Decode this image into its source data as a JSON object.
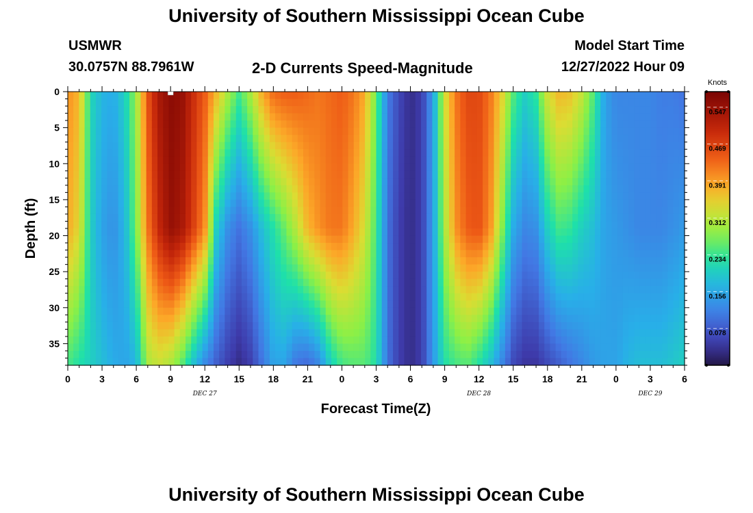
{
  "header": {
    "title": "University of Southern Mississippi Ocean Cube",
    "station": "USMWR",
    "coords": "30.0757N  88.7961W",
    "subtitle": "2-D Currents Speed-Magnitude",
    "model_start_label": "Model Start Time",
    "model_start_value": "12/27/2022 Hour 09",
    "footer_title": "University of Southern Mississippi Ocean Cube"
  },
  "chart_data": {
    "type": "heatmap",
    "xlabel": "Forecast Time(Z)",
    "ylabel": "Depth (ft)",
    "x_range": [
      0,
      54
    ],
    "y_range": [
      0,
      38
    ],
    "x_ticks": [
      0,
      3,
      6,
      9,
      12,
      15,
      18,
      21,
      24,
      27,
      30,
      33,
      36,
      39,
      42,
      45,
      48,
      51,
      54
    ],
    "x_tick_labels": [
      "0",
      "3",
      "6",
      "9",
      "12",
      "15",
      "18",
      "21",
      "0",
      "3",
      "6",
      "9",
      "12",
      "15",
      "18",
      "21",
      "0",
      "3",
      "6"
    ],
    "y_ticks": [
      0,
      5,
      10,
      15,
      20,
      25,
      30,
      35
    ],
    "y_tick_labels": [
      "0",
      "5",
      "10",
      "15",
      "20",
      "25",
      "30",
      "35"
    ],
    "date_labels": [
      {
        "x": 12,
        "text": "DEC 27"
      },
      {
        "x": 36,
        "text": "DEC 28"
      },
      {
        "x": 51,
        "text": "DEC 29"
      }
    ],
    "colorbar": {
      "unit": "Knots",
      "min": 0.0,
      "max": 0.58,
      "ticks": [
        0.547,
        0.469,
        0.391,
        0.312,
        0.234,
        0.156,
        0.078
      ],
      "tick_labels": [
        "0.547",
        "0.469",
        "0.391",
        "0.312",
        "0.234",
        "0.156",
        "0.078"
      ]
    },
    "columns": [
      {
        "x": 0,
        "top": 0.4,
        "mid": 0.38,
        "bottom": 0.24
      },
      {
        "x": 1,
        "top": 0.37,
        "mid": 0.34,
        "bottom": 0.22
      },
      {
        "x": 2,
        "top": 0.21,
        "mid": 0.2,
        "bottom": 0.2
      },
      {
        "x": 3,
        "top": 0.17,
        "mid": 0.15,
        "bottom": 0.18
      },
      {
        "x": 4,
        "top": 0.16,
        "mid": 0.13,
        "bottom": 0.16
      },
      {
        "x": 5,
        "top": 0.2,
        "mid": 0.17,
        "bottom": 0.15
      },
      {
        "x": 6,
        "top": 0.29,
        "mid": 0.27,
        "bottom": 0.17
      },
      {
        "x": 7,
        "top": 0.45,
        "mid": 0.42,
        "bottom": 0.3
      },
      {
        "x": 8,
        "top": 0.53,
        "mid": 0.5,
        "bottom": 0.32
      },
      {
        "x": 9,
        "top": 0.56,
        "mid": 0.55,
        "bottom": 0.3
      },
      {
        "x": 10,
        "top": 0.55,
        "mid": 0.53,
        "bottom": 0.25
      },
      {
        "x": 11,
        "top": 0.49,
        "mid": 0.47,
        "bottom": 0.18
      },
      {
        "x": 12,
        "top": 0.44,
        "mid": 0.4,
        "bottom": 0.12
      },
      {
        "x": 13,
        "top": 0.37,
        "mid": 0.2,
        "bottom": 0.08
      },
      {
        "x": 14,
        "top": 0.3,
        "mid": 0.13,
        "bottom": 0.05
      },
      {
        "x": 15,
        "top": 0.24,
        "mid": 0.1,
        "bottom": 0.03
      },
      {
        "x": 16,
        "top": 0.3,
        "mid": 0.13,
        "bottom": 0.05
      },
      {
        "x": 17,
        "top": 0.38,
        "mid": 0.18,
        "bottom": 0.1
      },
      {
        "x": 18,
        "top": 0.43,
        "mid": 0.22,
        "bottom": 0.15
      },
      {
        "x": 19,
        "top": 0.44,
        "mid": 0.26,
        "bottom": 0.15
      },
      {
        "x": 20,
        "top": 0.44,
        "mid": 0.31,
        "bottom": 0.1
      },
      {
        "x": 21,
        "top": 0.43,
        "mid": 0.37,
        "bottom": 0.09
      },
      {
        "x": 22,
        "top": 0.42,
        "mid": 0.4,
        "bottom": 0.12
      },
      {
        "x": 23,
        "top": 0.43,
        "mid": 0.42,
        "bottom": 0.2
      },
      {
        "x": 24,
        "top": 0.44,
        "mid": 0.42,
        "bottom": 0.24
      },
      {
        "x": 25,
        "top": 0.42,
        "mid": 0.38,
        "bottom": 0.25
      },
      {
        "x": 26,
        "top": 0.38,
        "mid": 0.33,
        "bottom": 0.25
      },
      {
        "x": 27,
        "top": 0.26,
        "mid": 0.24,
        "bottom": 0.22
      },
      {
        "x": 28,
        "top": 0.11,
        "mid": 0.1,
        "bottom": 0.1
      },
      {
        "x": 29,
        "top": 0.06,
        "mid": 0.05,
        "bottom": 0.05
      },
      {
        "x": 30,
        "top": 0.03,
        "mid": 0.03,
        "bottom": 0.03
      },
      {
        "x": 31,
        "top": 0.05,
        "mid": 0.05,
        "bottom": 0.05
      },
      {
        "x": 32,
        "top": 0.15,
        "mid": 0.15,
        "bottom": 0.14
      },
      {
        "x": 33,
        "top": 0.33,
        "mid": 0.3,
        "bottom": 0.22
      },
      {
        "x": 34,
        "top": 0.42,
        "mid": 0.4,
        "bottom": 0.24
      },
      {
        "x": 35,
        "top": 0.46,
        "mid": 0.44,
        "bottom": 0.25
      },
      {
        "x": 36,
        "top": 0.46,
        "mid": 0.45,
        "bottom": 0.22
      },
      {
        "x": 37,
        "top": 0.42,
        "mid": 0.4,
        "bottom": 0.18
      },
      {
        "x": 38,
        "top": 0.35,
        "mid": 0.28,
        "bottom": 0.12
      },
      {
        "x": 39,
        "top": 0.25,
        "mid": 0.16,
        "bottom": 0.06
      },
      {
        "x": 40,
        "top": 0.2,
        "mid": 0.12,
        "bottom": 0.04
      },
      {
        "x": 41,
        "top": 0.23,
        "mid": 0.13,
        "bottom": 0.04
      },
      {
        "x": 42,
        "top": 0.33,
        "mid": 0.2,
        "bottom": 0.06
      },
      {
        "x": 43,
        "top": 0.37,
        "mid": 0.24,
        "bottom": 0.08
      },
      {
        "x": 44,
        "top": 0.36,
        "mid": 0.23,
        "bottom": 0.1
      },
      {
        "x": 45,
        "top": 0.32,
        "mid": 0.2,
        "bottom": 0.12
      },
      {
        "x": 46,
        "top": 0.25,
        "mid": 0.18,
        "bottom": 0.14
      },
      {
        "x": 47,
        "top": 0.15,
        "mid": 0.15,
        "bottom": 0.15
      },
      {
        "x": 48,
        "top": 0.12,
        "mid": 0.14,
        "bottom": 0.15
      },
      {
        "x": 49,
        "top": 0.12,
        "mid": 0.13,
        "bottom": 0.17
      },
      {
        "x": 50,
        "top": 0.12,
        "mid": 0.12,
        "bottom": 0.18
      },
      {
        "x": 51,
        "top": 0.12,
        "mid": 0.12,
        "bottom": 0.18
      },
      {
        "x": 52,
        "top": 0.11,
        "mid": 0.12,
        "bottom": 0.18
      },
      {
        "x": 53,
        "top": 0.11,
        "mid": 0.13,
        "bottom": 0.19
      },
      {
        "x": 54,
        "top": 0.1,
        "mid": 0.14,
        "bottom": 0.2
      }
    ]
  }
}
